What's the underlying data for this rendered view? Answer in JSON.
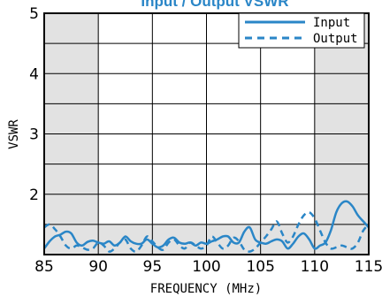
{
  "chart_data": {
    "type": "line",
    "title": "Input / Output VSWR",
    "xlabel": "FREQUENCY (MHz)",
    "ylabel": "VSWR",
    "xlim": [
      85,
      115
    ],
    "ylim": [
      1,
      5
    ],
    "x_ticks": [
      85,
      90,
      95,
      100,
      105,
      110,
      115
    ],
    "y_ticks": [
      2,
      3,
      4,
      5
    ],
    "grid": true,
    "shaded_ranges": [
      [
        85,
        90
      ],
      [
        110,
        115
      ]
    ],
    "shaded_y_range": [
      1,
      1.5
    ],
    "legend_position": "top-right",
    "line_color": "#2a86c7",
    "shade_color": "#e2e2e2",
    "series": [
      {
        "name": "Input",
        "style": "solid",
        "x": [
          85,
          85.5,
          86,
          86.5,
          87,
          87.5,
          88,
          88.5,
          89,
          89.5,
          90,
          90.5,
          91,
          91.5,
          92,
          92.5,
          93,
          93.5,
          94,
          94.5,
          95,
          95.5,
          96,
          96.5,
          97,
          97.5,
          98,
          98.5,
          99,
          99.5,
          100,
          100.5,
          101,
          101.5,
          102,
          102.5,
          103,
          103.5,
          104,
          104.5,
          105,
          105.5,
          106,
          106.5,
          107,
          107.5,
          108,
          108.5,
          109,
          109.5,
          110,
          110.5,
          111,
          111.5,
          112,
          112.5,
          113,
          113.5,
          114,
          114.5,
          115
        ],
        "values": [
          1.1,
          1.22,
          1.3,
          1.33,
          1.38,
          1.35,
          1.2,
          1.15,
          1.21,
          1.23,
          1.2,
          1.18,
          1.22,
          1.15,
          1.2,
          1.3,
          1.22,
          1.18,
          1.18,
          1.25,
          1.18,
          1.12,
          1.15,
          1.25,
          1.28,
          1.2,
          1.18,
          1.2,
          1.15,
          1.2,
          1.18,
          1.22,
          1.25,
          1.3,
          1.3,
          1.2,
          1.2,
          1.38,
          1.45,
          1.25,
          1.2,
          1.18,
          1.22,
          1.25,
          1.22,
          1.1,
          1.18,
          1.3,
          1.35,
          1.25,
          1.1,
          1.15,
          1.2,
          1.4,
          1.7,
          1.85,
          1.88,
          1.8,
          1.65,
          1.55,
          1.45
        ]
      },
      {
        "name": "Output",
        "style": "dashed",
        "x": [
          85,
          85.5,
          86,
          86.5,
          87,
          87.5,
          88,
          88.5,
          89,
          89.5,
          90,
          90.5,
          91,
          91.5,
          92,
          92.5,
          93,
          93.5,
          94,
          94.5,
          95,
          95.5,
          96,
          96.5,
          97,
          97.5,
          98,
          98.5,
          99,
          99.5,
          100,
          100.5,
          101,
          101.5,
          102,
          102.5,
          103,
          103.5,
          104,
          104.5,
          105,
          105.5,
          106,
          106.5,
          107,
          107.5,
          108,
          108.5,
          109,
          109.5,
          110,
          110.5,
          111,
          111.5,
          112,
          112.5,
          113,
          113.5,
          114,
          114.5,
          115
        ],
        "values": [
          1.45,
          1.5,
          1.42,
          1.3,
          1.15,
          1.1,
          1.15,
          1.12,
          1.08,
          1.1,
          1.2,
          1.15,
          1.05,
          1.1,
          1.2,
          1.25,
          1.1,
          1.05,
          1.15,
          1.3,
          1.22,
          1.12,
          1.08,
          1.2,
          1.25,
          1.15,
          1.1,
          1.2,
          1.15,
          1.1,
          1.15,
          1.3,
          1.2,
          1.1,
          1.15,
          1.28,
          1.22,
          1.08,
          1.05,
          1.1,
          1.2,
          1.3,
          1.42,
          1.55,
          1.35,
          1.2,
          1.3,
          1.5,
          1.65,
          1.7,
          1.6,
          1.4,
          1.2,
          1.1,
          1.12,
          1.15,
          1.12,
          1.1,
          1.2,
          1.4,
          1.5
        ]
      }
    ]
  }
}
